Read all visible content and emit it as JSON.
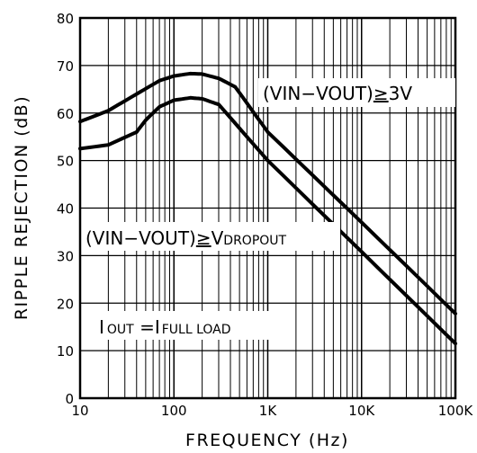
{
  "chart_data": {
    "type": "line",
    "xscale": "log",
    "xlim": [
      10,
      100000
    ],
    "ylim": [
      0,
      80
    ],
    "xlabel": "FREQUENCY (Hz)",
    "ylabel": "RIPPLE REJECTION (dB)",
    "grid": true,
    "x_ticks": [
      {
        "value": 10,
        "label": "10"
      },
      {
        "value": 100,
        "label": "100"
      },
      {
        "value": 1000,
        "label": "1K"
      },
      {
        "value": 10000,
        "label": "10K"
      },
      {
        "value": 100000,
        "label": "100K"
      }
    ],
    "y_ticks": [
      {
        "value": 0,
        "label": "0"
      },
      {
        "value": 10,
        "label": "10"
      },
      {
        "value": 20,
        "label": "20"
      },
      {
        "value": 30,
        "label": "30"
      },
      {
        "value": 40,
        "label": "40"
      },
      {
        "value": 50,
        "label": "50"
      },
      {
        "value": 60,
        "label": "60"
      },
      {
        "value": 70,
        "label": "70"
      },
      {
        "value": 80,
        "label": "80"
      }
    ],
    "series": [
      {
        "x": [
          10,
          20,
          40,
          70,
          100,
          150,
          200,
          300,
          450,
          1000,
          10000,
          100000
        ],
        "y": [
          58.2,
          60.5,
          64.0,
          66.8,
          67.8,
          68.3,
          68.2,
          67.3,
          65.5,
          56.0,
          37.0,
          17.8
        ]
      },
      {
        "x": [
          10,
          20,
          40,
          50,
          70,
          100,
          150,
          200,
          300,
          1000,
          10000,
          100000
        ],
        "y": [
          52.5,
          53.3,
          56.0,
          58.5,
          61.3,
          62.7,
          63.2,
          63.0,
          61.8,
          50.0,
          30.8,
          11.5
        ]
      }
    ],
    "annotations": [
      {
        "id": "a1",
        "parts": [
          "(VIN−VOUT)",
          "≥",
          "3V"
        ]
      },
      {
        "id": "a2",
        "parts": [
          "(VIN−VOUT)",
          "≥",
          "V",
          "DROPOUT"
        ]
      },
      {
        "id": "a3",
        "parts": [
          "I",
          "OUT",
          " =I",
          "FULL LOAD"
        ]
      }
    ]
  }
}
